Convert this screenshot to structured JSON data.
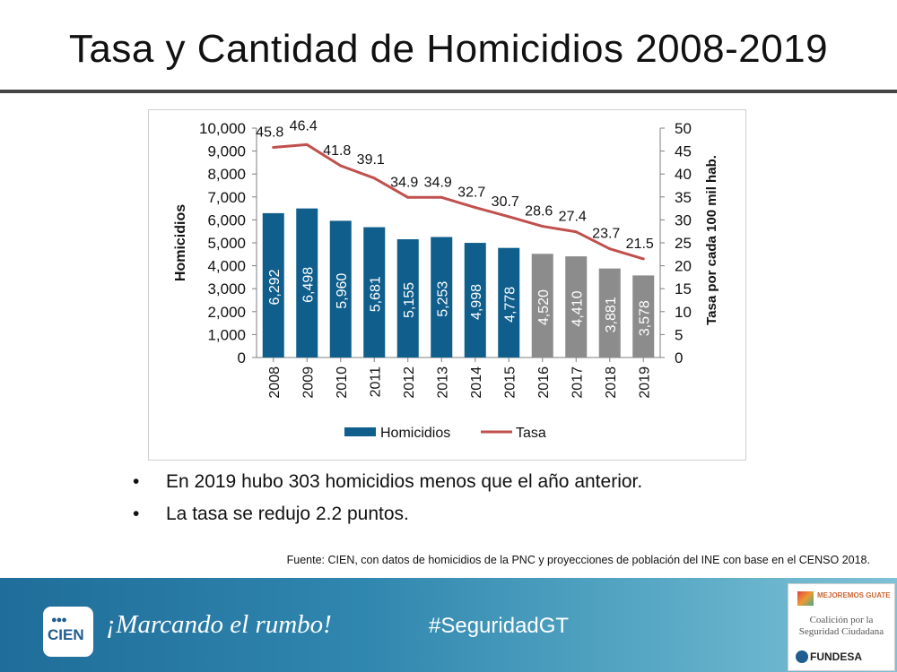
{
  "title": "Tasa y Cantidad de Homicidios 2008-2019",
  "chart_data": {
    "type": "bar",
    "categories": [
      "2008",
      "2009",
      "2010",
      "2011",
      "2012",
      "2013",
      "2014",
      "2015",
      "2016",
      "2017",
      "2018",
      "2019"
    ],
    "series": [
      {
        "name": "Homicidios",
        "type": "bar",
        "axis": "left",
        "values": [
          6292,
          6498,
          5960,
          5681,
          5155,
          5253,
          4998,
          4778,
          4520,
          4410,
          3881,
          3578
        ],
        "labels": [
          "6,292",
          "6,498",
          "5,960",
          "5,681",
          "5,155",
          "5,253",
          "4,998",
          "4,778",
          "4,520",
          "4,410",
          "3,881",
          "3,578"
        ]
      },
      {
        "name": "Tasa",
        "type": "line",
        "axis": "right",
        "values": [
          45.8,
          46.4,
          41.8,
          39.1,
          34.9,
          34.9,
          32.7,
          30.7,
          28.6,
          27.4,
          23.7,
          21.5
        ]
      }
    ],
    "bar_colors": [
      "#0f5e8c",
      "#0f5e8c",
      "#0f5e8c",
      "#0f5e8c",
      "#0f5e8c",
      "#0f5e8c",
      "#0f5e8c",
      "#0f5e8c",
      "#8c8c8c",
      "#8c8c8c",
      "#8c8c8c",
      "#8c8c8c"
    ],
    "line_color": "#c0504d",
    "ylabel": "Homicidios",
    "ylabel_right": "Tasa por cada 100 mil hab.",
    "ylim": [
      0,
      10000
    ],
    "ylim_right": [
      0,
      50
    ],
    "yticks": [
      "0",
      "1,000",
      "2,000",
      "3,000",
      "4,000",
      "5,000",
      "6,000",
      "7,000",
      "8,000",
      "9,000",
      "10,000"
    ],
    "yticks_right": [
      "0",
      "5",
      "10",
      "15",
      "20",
      "25",
      "30",
      "35",
      "40",
      "45",
      "50"
    ],
    "legend": {
      "placement": "bottom",
      "bar_label": "Homicidios",
      "line_label": "Tasa"
    },
    "grid": false
  },
  "bullets": [
    "En 2019 hubo 303 homicidios menos que el año anterior.",
    "La tasa se redujo 2.2 puntos."
  ],
  "bullet_symbol": "•",
  "source": "Fuente: CIEN, con datos de homicidios de la PNC y proyecciones de población del INE con base en el CENSO 2018.",
  "footer": {
    "logo_text": "CIEN",
    "logo_dots": "●●●",
    "slogan": "¡Marcando el rumbo!",
    "hashtag": "#SeguridadGT",
    "partner_top": "MEJOREMOS GUATE",
    "partner_middle": "Coalición por la Seguridad Ciudadana",
    "partner_bottom": "FUNDESA"
  }
}
